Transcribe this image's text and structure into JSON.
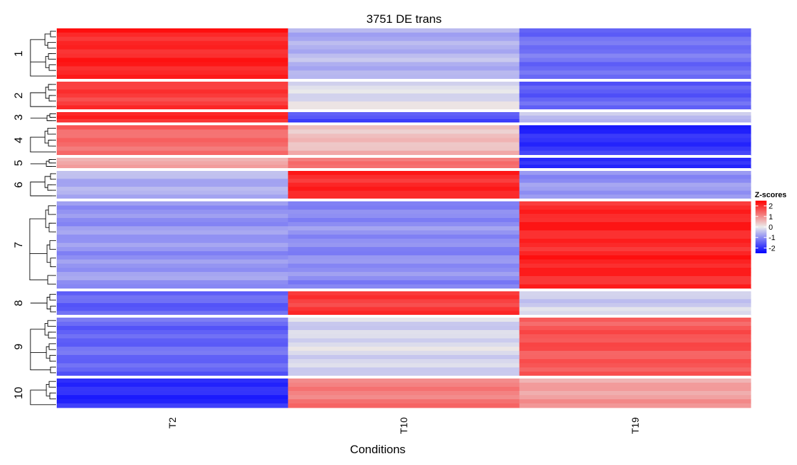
{
  "chart_data": {
    "type": "heatmap",
    "title": "3751 DE trans",
    "xlabel": "Conditions",
    "ylabel": "",
    "columns": [
      "T2",
      "T10",
      "T19"
    ],
    "row_clusters": [
      {
        "label": "1",
        "values": [
          2.1,
          -0.6,
          -1.3
        ]
      },
      {
        "label": "2",
        "values": [
          1.9,
          -0.1,
          -1.5
        ]
      },
      {
        "label": "3",
        "values": [
          2.0,
          -1.6,
          -0.4
        ]
      },
      {
        "label": "4",
        "values": [
          1.4,
          0.5,
          -2.0
        ]
      },
      {
        "label": "5",
        "values": [
          0.7,
          1.3,
          -2.0
        ]
      },
      {
        "label": "6",
        "values": [
          -0.6,
          2.1,
          -0.9
        ]
      },
      {
        "label": "7",
        "values": [
          -0.9,
          -1.0,
          2.1
        ]
      },
      {
        "label": "8",
        "values": [
          -1.4,
          1.9,
          -0.3
        ]
      },
      {
        "label": "9",
        "values": [
          -1.4,
          -0.2,
          1.6
        ]
      },
      {
        "label": "10",
        "values": [
          -2.0,
          1.2,
          0.8
        ]
      }
    ],
    "colorscale": {
      "title": "Z-scores",
      "min": -2.5,
      "max": 2.5,
      "ticks": [
        2,
        1,
        0,
        -1,
        -2
      ],
      "colors": {
        "low": "#0000ff",
        "mid": "#ebebeb",
        "high": "#ff0000"
      }
    },
    "legend_position": "right",
    "grid": false
  }
}
